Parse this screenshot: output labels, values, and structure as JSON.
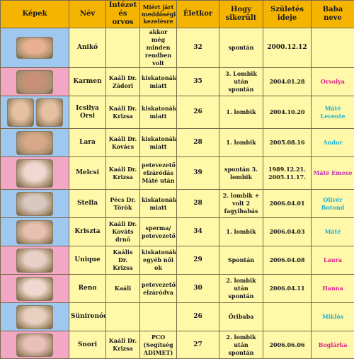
{
  "headers": {
    "kepek": "Képek",
    "nev": "Név",
    "intezet": "Intézet és orvos",
    "miert": "Miért járt meddőségi kezelésre",
    "eletkor": "Életkor",
    "hogy": "Hogy sikerült",
    "szules": "Születés ideje",
    "baba": "Baba neve"
  },
  "rows": [
    {
      "bg": "#9ec8f0",
      "photo_tones": [
        "#e8b090"
      ],
      "nev": "Anikó",
      "intezet": "",
      "miert": "akkor még minden rendben volt",
      "eletkor": "32",
      "hogy": "spontán",
      "szules": "2000.12.12",
      "baba": "",
      "baba_color": "pink"
    },
    {
      "bg": "#f2a8c4",
      "photo_tones": [
        "#c89078"
      ],
      "nev": "Karmen",
      "intezet": "Kaáli Dr. Zádori",
      "miert": "kiskatonák miatt",
      "eletkor": "35",
      "hogy": "3. Lombik után spontán",
      "szules": "2004.01.28",
      "baba": "Orsolya",
      "baba_color": "pink"
    },
    {
      "bg": "#9ec8f0",
      "photo_tones": [
        "#e6c0a0",
        "#e6c0a0"
      ],
      "nev": "Icsilya Orsi",
      "intezet": "Kaáli Dr. Krizsa",
      "miert": "kiskatonák miatt",
      "eletkor": "26",
      "hogy": "1. lombik",
      "szules": "2004.10.20",
      "baba": "Máté Levente",
      "baba_color": "cyan"
    },
    {
      "bg": "#9ec8f0",
      "photo_tones": [
        "#d8a888"
      ],
      "nev": "Lara",
      "intezet": "Kaáli Dr. Kovács",
      "miert": "kiskatonák miatt",
      "eletkor": "28",
      "hogy": "1. lombik",
      "szules": "2005.08.16",
      "baba": "Andor",
      "baba_color": "cyan"
    },
    {
      "bg": "#f2a8c4",
      "photo_tones": [
        "#f0d8d0"
      ],
      "nev": "Melcsi",
      "intezet": "Kaáli Dr. Krizsa",
      "miert": "petevezető elzáródás Máté után",
      "eletkor": "39",
      "hogy": "spontán 3. lombik",
      "szules": "1989.12.21. 2005.11.17.",
      "baba": "Máté Emese",
      "baba_color": "mixed"
    },
    {
      "bg": "#9ec8f0",
      "photo_tones": [
        "#d8c8c0"
      ],
      "nev": "Stella",
      "intezet": "Pécs Dr. Török",
      "miert": "kiskatonák miatt",
      "eletkor": "28",
      "hogy": "2. lombik + volt 2 fagyibabás",
      "szules": "2006.04.01",
      "baba": "Olivér Botond",
      "baba_color": "cyan"
    },
    {
      "bg": "#9ec8f0",
      "photo_tones": [
        "#e8c0b0"
      ],
      "nev": "Kriszta",
      "intezet": "Kaáli Dr. Kováts drnő",
      "miert": "sperma/ petevezető",
      "eletkor": "34",
      "hogy": "1. lombik",
      "szules": "2006.04.03",
      "baba": "Máté",
      "baba_color": "cyan"
    },
    {
      "bg": "#f2a8c4",
      "photo_tones": [
        "#e8d0c8"
      ],
      "nev": "Unique",
      "intezet": "Kaális Dr. Krizsa",
      "miert": "kiskatonák egyéb női ok",
      "eletkor": "29",
      "hogy": "Spontán",
      "szules": "2006.04.08",
      "baba": "Laura",
      "baba_color": "pink"
    },
    {
      "bg": "#f2a8c4",
      "photo_tones": [
        "#f0d8d0"
      ],
      "nev": "Reno",
      "intezet": "Kaáli",
      "miert": "petevezetők elzáródva",
      "eletkor": "30",
      "hogy": "2. lombik után spontán",
      "szules": "2006.04.11",
      "baba": "Hanna",
      "baba_color": "pink"
    },
    {
      "bg": "#9ec8f0",
      "photo_tones": [
        "#e8d0c0"
      ],
      "nev": "Sünirenóca",
      "intezet": "",
      "miert": "",
      "eletkor": "26",
      "hogy": "Őribaba",
      "szules": "",
      "baba": "Miklós",
      "baba_color": "cyan"
    },
    {
      "bg": "#f2a8c4",
      "photo_tones": [
        "#e8c0b8"
      ],
      "nev": "Snori",
      "intezet": "Kaáli Dr. Krizsa",
      "miert": "PCO (Segítség ADIMET)",
      "eletkor": "27",
      "hogy": "2. lombik után spontán",
      "szules": "2006.06.06",
      "baba": "Boglárka",
      "baba_color": "pink"
    }
  ]
}
